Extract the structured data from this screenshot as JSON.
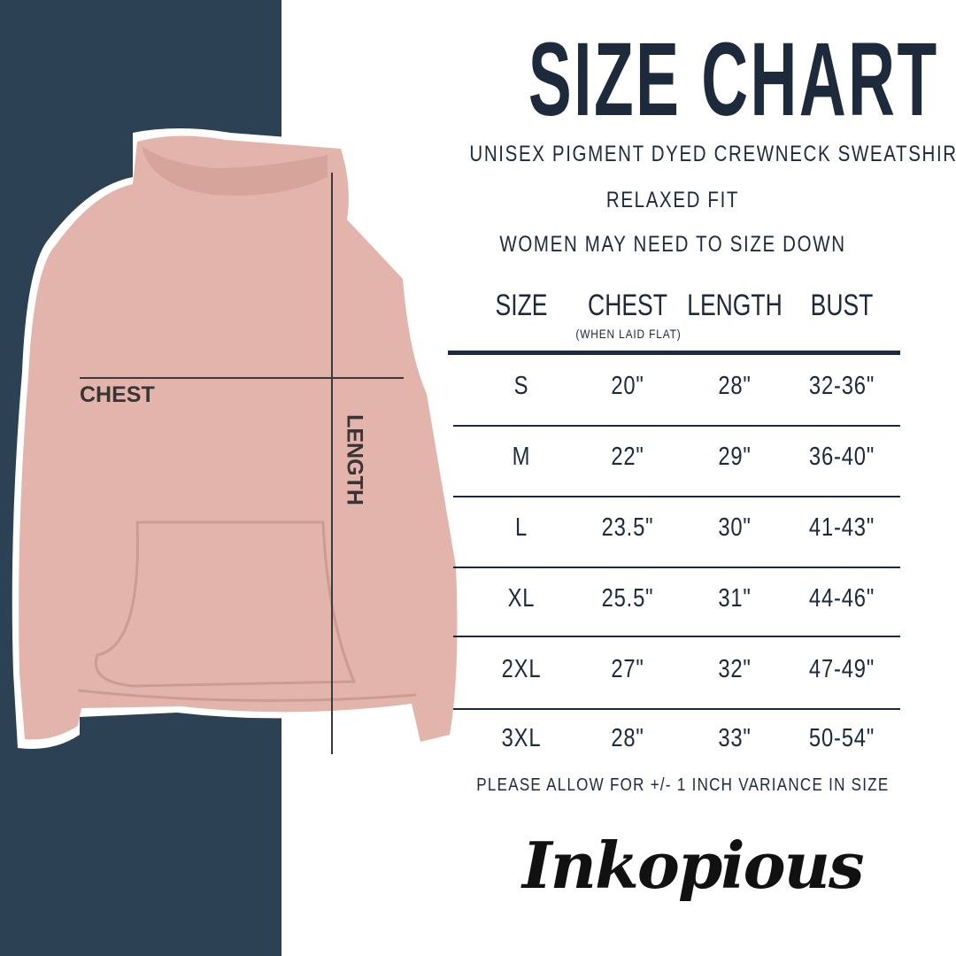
{
  "title": "SIZE CHART",
  "subtitles": [
    "UNISEX PIGMENT DYED CREWNECK SWEATSHIRT",
    "RELAXED FIT",
    "WOMEN MAY NEED TO SIZE DOWN"
  ],
  "headers": {
    "size": "SIZE",
    "chest": "CHEST",
    "chest_note": "(WHEN LAID FLAT)",
    "length": "LENGTH",
    "bust": "BUST"
  },
  "rows": [
    {
      "size": "S",
      "chest": "20\"",
      "length": "28\"",
      "bust": "32-36\""
    },
    {
      "size": "M",
      "chest": "22\"",
      "length": "29\"",
      "bust": "36-40\""
    },
    {
      "size": "L",
      "chest": "23.5\"",
      "length": "30\"",
      "bust": "41-43\""
    },
    {
      "size": "XL",
      "chest": "25.5\"",
      "length": "31\"",
      "bust": "44-46\""
    },
    {
      "size": "2XL",
      "chest": "27\"",
      "length": "32\"",
      "bust": "47-49\""
    },
    {
      "size": "3XL",
      "chest": "28\"",
      "length": "33\"",
      "bust": "50-54\""
    }
  ],
  "note": "PLEASE ALLOW FOR +/- 1 INCH VARIANCE IN SIZE",
  "diagram": {
    "chest_label": "CHEST",
    "length_label": "LENGTH"
  },
  "logo": "Inkopious",
  "colors": {
    "navy": "#2c4154",
    "text": "#1c2a3c",
    "garment": "#e2b4ab"
  }
}
